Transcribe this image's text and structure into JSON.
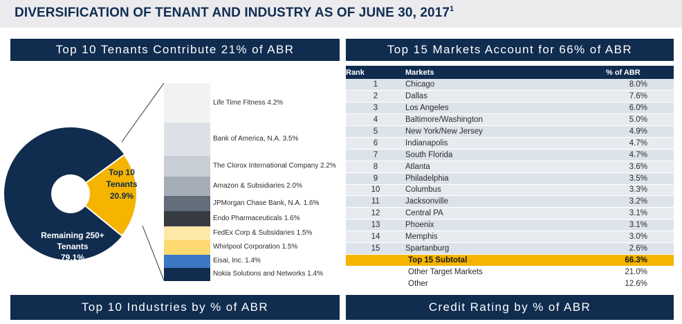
{
  "page": {
    "title": "DIVERSIFICATION OF TENANT AND INDUSTRY AS OF JUNE 30, 2017",
    "title_footnote": "1"
  },
  "panels": {
    "tenants_header": "Top 10 Tenants Contribute 21% of ABR",
    "markets_header": "Top 15 Markets Account for 66% of ABR",
    "industries_header": "Top 10 Industries by % of ABR",
    "credit_header": "Credit Rating by % of ABR"
  },
  "pie": {
    "top10_label_line1": "Top 10",
    "top10_label_line2": "Tenants",
    "top10_pct": "20.9%",
    "remaining_label_line1": "Remaining 250+",
    "remaining_label_line2": "Tenants",
    "remaining_pct": "79.1%"
  },
  "chart_data": {
    "type": "pie",
    "slices": [
      {
        "label": "Top 10 Tenants",
        "value": 20.9,
        "color": "#f5b400"
      },
      {
        "label": "Remaining 250+ Tenants",
        "value": 79.1,
        "color": "#102c4f"
      }
    ],
    "breakdown": {
      "type": "bar",
      "stacked": true,
      "categories": [
        "Life Time Fitness",
        "Bank of America, N.A.",
        "The Clorox International Company",
        "Amazon & Subsidiaries",
        "JPMorgan Chase Bank, N.A.",
        "Endo Pharmaceuticals",
        "FedEx Corp & Subsidaries",
        "Whirlpool Corporation",
        "Eisai, Inc.",
        "Nokia Solutions and Networks"
      ],
      "values": [
        4.2,
        3.5,
        2.2,
        2.0,
        1.6,
        1.6,
        1.5,
        1.5,
        1.4,
        1.4
      ]
    }
  },
  "tenants": [
    {
      "label": "Life Time Fitness 4.2%",
      "color": "#f1f2f4"
    },
    {
      "label": "Bank of America, N.A. 3.5%",
      "color": "#dde1e7"
    },
    {
      "label": "The Clorox International Company 2.2%",
      "color": "#c8ced6"
    },
    {
      "label": "Amazon & Subsidiaries 2.0%",
      "color": "#a5adb7"
    },
    {
      "label": "JPMorgan Chase Bank, N.A. 1.6%",
      "color": "#646e7b"
    },
    {
      "label": "Endo Pharmaceuticals 1.6%",
      "color": "#363b42"
    },
    {
      "label": "FedEx Corp & Subsidaries 1.5%",
      "color": "#fde8a8"
    },
    {
      "label": "Whirlpool Corporation 1.5%",
      "color": "#fdd970"
    },
    {
      "label": "Eisai, Inc. 1.4%",
      "color": "#3c78c4"
    },
    {
      "label": "Nokia Solutions and Networks 1.4%",
      "color": "#102c4f"
    }
  ],
  "markets": {
    "headers": {
      "rank": "Rank",
      "market": "Markets",
      "pct": "% of ABR"
    },
    "rows": [
      {
        "rank": "1",
        "market": "Chicago",
        "pct": "8.0%"
      },
      {
        "rank": "2",
        "market": "Dallas",
        "pct": "7.6%"
      },
      {
        "rank": "3",
        "market": "Los Angeles",
        "pct": "6.0%"
      },
      {
        "rank": "4",
        "market": "Baltimore/Washington",
        "pct": "5.0%"
      },
      {
        "rank": "5",
        "market": "New York/New Jersey",
        "pct": "4.9%"
      },
      {
        "rank": "6",
        "market": "Indianapolis",
        "pct": "4.7%"
      },
      {
        "rank": "7",
        "market": "South Florida",
        "pct": "4.7%"
      },
      {
        "rank": "8",
        "market": "Atlanta",
        "pct": "3.6%"
      },
      {
        "rank": "9",
        "market": "Philadelphia",
        "pct": "3.5%"
      },
      {
        "rank": "10",
        "market": "Columbus",
        "pct": "3.3%"
      },
      {
        "rank": "11",
        "market": "Jacksonville",
        "pct": "3.2%"
      },
      {
        "rank": "12",
        "market": "Central PA",
        "pct": "3.1%"
      },
      {
        "rank": "13",
        "market": "Phoenix",
        "pct": "3.1%"
      },
      {
        "rank": "14",
        "market": "Memphis",
        "pct": "3.0%"
      },
      {
        "rank": "15",
        "market": "Spartanburg",
        "pct": "2.6%"
      }
    ],
    "subtotal": {
      "label": "Top 15 Subtotal",
      "pct": "66.3%"
    },
    "other_target": {
      "label": "Other Target Markets",
      "pct": "21.0%"
    },
    "other": {
      "label": "Other",
      "pct": "12.6%"
    }
  }
}
